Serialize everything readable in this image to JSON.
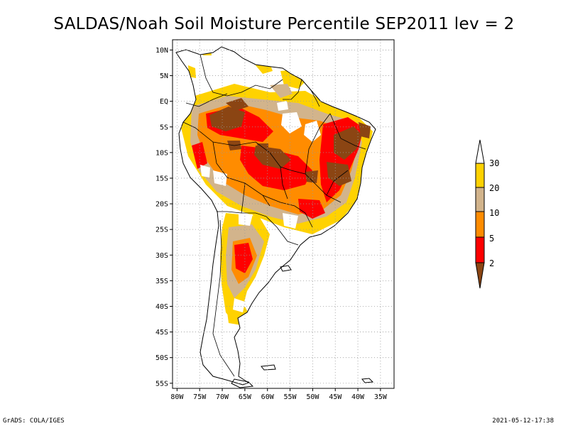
{
  "title": "SALDAS/Noah Soil Moisture Percentile SEP2011 lev = 2",
  "map": {
    "lon_range": [
      -81,
      -32
    ],
    "lat_range": [
      -56,
      12
    ],
    "lon_ticks": [
      "80W",
      "75W",
      "70W",
      "65W",
      "60W",
      "55W",
      "50W",
      "45W",
      "40W",
      "35W"
    ],
    "lat_ticks": [
      "10N",
      "5N",
      "EQ",
      "5S",
      "10S",
      "15S",
      "20S",
      "25S",
      "30S",
      "35S",
      "40S",
      "45S",
      "50S",
      "55S"
    ],
    "grid": true
  },
  "legend": {
    "levels": [
      "30",
      "20",
      "10",
      "5",
      "2"
    ],
    "colors": {
      "gt30": "#ffffff",
      "c20_30": "#ffd200",
      "c10_20": "#d2b48c",
      "c5_10": "#ff8c00",
      "c2_5": "#ff0000",
      "lt2": "#8b4513"
    }
  },
  "footer": {
    "left": "GrADS: COLA/IGES",
    "right": "2021-05-12-17:38"
  }
}
